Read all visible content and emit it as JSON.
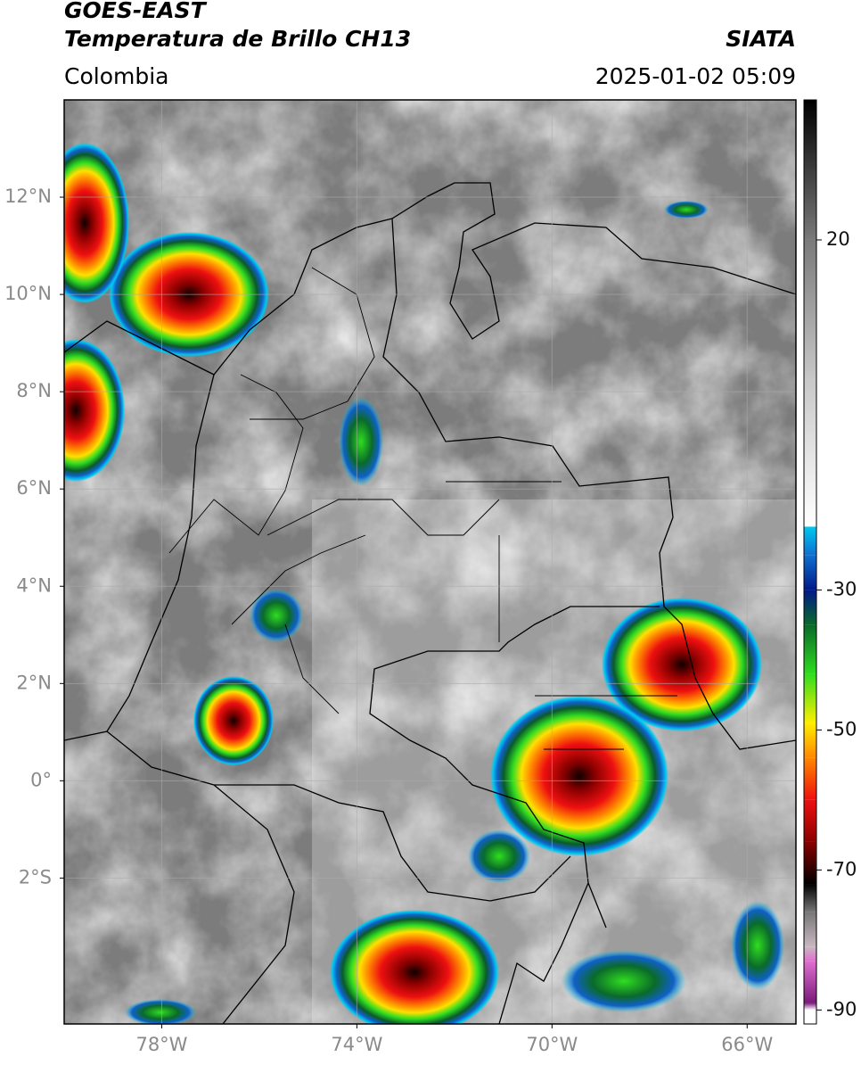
{
  "chart_data": {
    "type": "map",
    "title": "GOES-EAST",
    "subtitle": "Temperatura de Brillo CH13",
    "source": "SIATA",
    "region": "Colombia",
    "datetime": "2025-01-02 05:09",
    "xlim": [
      -80,
      -65
    ],
    "ylim": [
      -5,
      14
    ],
    "xticks": [
      {
        "value": -78,
        "label": "78°W"
      },
      {
        "value": -74,
        "label": "74°W"
      },
      {
        "value": -70,
        "label": "70°W"
      },
      {
        "value": -66,
        "label": "66°W"
      }
    ],
    "yticks": [
      {
        "value": 12,
        "label": "12°N"
      },
      {
        "value": 10,
        "label": "10°N"
      },
      {
        "value": 8,
        "label": "8°N"
      },
      {
        "value": 6,
        "label": "6°N"
      },
      {
        "value": 4,
        "label": "4°N"
      },
      {
        "value": 2,
        "label": "2°N"
      },
      {
        "value": 0,
        "label": "0°"
      },
      {
        "value": -2,
        "label": "2°S"
      }
    ],
    "grid": true,
    "colorbar": {
      "lim": [
        -92,
        40
      ],
      "ticks": [
        20,
        -30,
        -50,
        -70,
        -90
      ],
      "stops": [
        {
          "value": -92,
          "color": "#ffffff"
        },
        {
          "value": -90,
          "color": "#ffffff"
        },
        {
          "value": -89,
          "color": "#7a1a7a"
        },
        {
          "value": -83,
          "color": "#e070d0"
        },
        {
          "value": -81,
          "color": "#c8b8c0"
        },
        {
          "value": -76,
          "color": "#777777"
        },
        {
          "value": -72,
          "color": "#000000"
        },
        {
          "value": -66,
          "color": "#8a0000"
        },
        {
          "value": -60,
          "color": "#ee1010"
        },
        {
          "value": -54,
          "color": "#ff8800"
        },
        {
          "value": -49,
          "color": "#ffee00"
        },
        {
          "value": -42,
          "color": "#30dd20"
        },
        {
          "value": -35,
          "color": "#0a6a2a"
        },
        {
          "value": -30,
          "color": "#001a88"
        },
        {
          "value": -25,
          "color": "#1070d0"
        },
        {
          "value": -21,
          "color": "#00c8f0"
        },
        {
          "value": -20.9,
          "color": "#ffffff"
        },
        {
          "value": 0,
          "color": "#c8c8c8"
        },
        {
          "value": 20,
          "color": "#7a7a7a"
        },
        {
          "value": 40,
          "color": "#000000"
        }
      ]
    }
  }
}
